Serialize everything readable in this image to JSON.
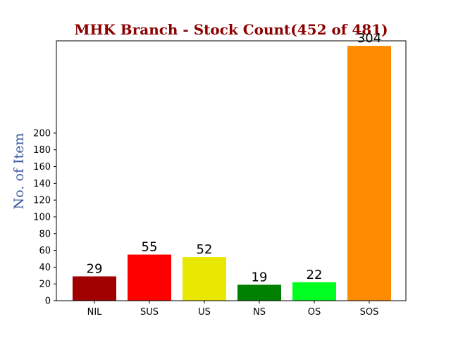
{
  "chart_data": {
    "type": "bar",
    "title": "MHK Branch - Stock Count(452 of 481)",
    "title_color": "#8b0000",
    "xlabel": "",
    "ylabel": "No. of Item",
    "ylabel_color": "#3a58a0",
    "categories": [
      "NIL",
      "SUS",
      "US",
      "NS",
      "OS",
      "SOS"
    ],
    "values": [
      29,
      55,
      52,
      19,
      22,
      304
    ],
    "data_labels": [
      "29",
      "55",
      "52",
      "19",
      "22",
      "304"
    ],
    "colors": [
      "#a00000",
      "#ff0000",
      "#e8e800",
      "#008000",
      "#00ff20",
      "#ff8c00"
    ],
    "yticks": [
      0,
      20,
      40,
      60,
      80,
      100,
      120,
      140,
      160,
      180,
      200
    ],
    "ylim": [
      0,
      310
    ],
    "grid": false,
    "legend": "none"
  }
}
